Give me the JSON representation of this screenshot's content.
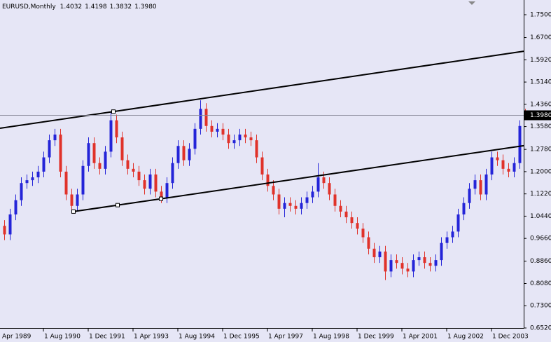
{
  "chart_data": {
    "type": "candlestick",
    "header": {
      "symbol": "EURUSD,Monthly",
      "open": "1.4032",
      "high": "1.4198",
      "low": "1.3832",
      "close": "1.3980"
    },
    "x": [
      1,
      3,
      5,
      7,
      9,
      11,
      13,
      15,
      17,
      19,
      21,
      23,
      25,
      27,
      29,
      31,
      33,
      35,
      37,
      39,
      41,
      43,
      45,
      47,
      49,
      51,
      53,
      55,
      57,
      59,
      61,
      63,
      65,
      67,
      69,
      71,
      73,
      75,
      77,
      79,
      81,
      83,
      85,
      87,
      89,
      91,
      93,
      95,
      97,
      99,
      101,
      103,
      105,
      107,
      109,
      111,
      113,
      115,
      117,
      119,
      121,
      123,
      125,
      127,
      129,
      131,
      133,
      135,
      137,
      139,
      141,
      143,
      145,
      147,
      149,
      151,
      153,
      155,
      157,
      159,
      161,
      163,
      165,
      167,
      169,
      171,
      173,
      175,
      177,
      179,
      181,
      183,
      185,
      187
    ],
    "open": [
      1.01,
      0.98,
      1.05,
      1.1,
      1.16,
      1.17,
      1.18,
      1.2,
      1.25,
      1.31,
      1.33,
      1.2,
      1.12,
      1.08,
      1.12,
      1.22,
      1.3,
      1.23,
      1.21,
      1.27,
      1.38,
      1.32,
      1.24,
      1.21,
      1.2,
      1.17,
      1.14,
      1.19,
      1.13,
      1.11,
      1.16,
      1.23,
      1.29,
      1.24,
      1.28,
      1.35,
      1.42,
      1.36,
      1.34,
      1.35,
      1.33,
      1.3,
      1.31,
      1.33,
      1.32,
      1.31,
      1.25,
      1.19,
      1.15,
      1.12,
      1.07,
      1.09,
      1.08,
      1.07,
      1.09,
      1.11,
      1.13,
      1.18,
      1.16,
      1.12,
      1.08,
      1.06,
      1.04,
      1.02,
      1.0,
      0.97,
      0.93,
      0.9,
      0.92,
      0.85,
      0.89,
      0.88,
      0.86,
      0.85,
      0.89,
      0.9,
      0.88,
      0.87,
      0.89,
      0.95,
      0.97,
      0.99,
      1.05,
      1.09,
      1.14,
      1.17,
      1.12,
      1.19,
      1.25,
      1.24,
      1.21,
      1.2,
      1.23,
      1.4032
    ],
    "high": [
      1.03,
      1.07,
      1.12,
      1.18,
      1.19,
      1.2,
      1.22,
      1.27,
      1.33,
      1.35,
      1.35,
      1.22,
      1.14,
      1.14,
      1.24,
      1.32,
      1.32,
      1.25,
      1.29,
      1.41,
      1.4,
      1.34,
      1.26,
      1.23,
      1.22,
      1.19,
      1.21,
      1.21,
      1.15,
      1.18,
      1.25,
      1.31,
      1.31,
      1.3,
      1.37,
      1.45,
      1.44,
      1.38,
      1.37,
      1.37,
      1.35,
      1.33,
      1.35,
      1.35,
      1.34,
      1.33,
      1.27,
      1.21,
      1.17,
      1.14,
      1.11,
      1.11,
      1.1,
      1.11,
      1.13,
      1.15,
      1.23,
      1.2,
      1.18,
      1.14,
      1.1,
      1.08,
      1.06,
      1.04,
      1.02,
      0.99,
      0.95,
      0.94,
      0.94,
      0.91,
      0.91,
      0.9,
      0.88,
      0.91,
      0.92,
      0.92,
      0.9,
      0.91,
      0.97,
      0.99,
      1.01,
      1.07,
      1.11,
      1.16,
      1.19,
      1.19,
      1.21,
      1.27,
      1.27,
      1.26,
      1.23,
      1.25,
      1.38,
      1.4198
    ],
    "low": [
      0.96,
      0.96,
      1.03,
      1.08,
      1.14,
      1.15,
      1.16,
      1.18,
      1.23,
      1.29,
      1.18,
      1.1,
      1.06,
      1.06,
      1.1,
      1.2,
      1.21,
      1.19,
      1.19,
      1.25,
      1.3,
      1.22,
      1.19,
      1.18,
      1.15,
      1.12,
      1.12,
      1.11,
      1.09,
      1.09,
      1.14,
      1.21,
      1.22,
      1.22,
      1.26,
      1.33,
      1.34,
      1.32,
      1.32,
      1.31,
      1.28,
      1.28,
      1.29,
      1.3,
      1.29,
      1.23,
      1.17,
      1.13,
      1.1,
      1.05,
      1.04,
      1.06,
      1.05,
      1.05,
      1.07,
      1.09,
      1.11,
      1.14,
      1.1,
      1.06,
      1.04,
      1.02,
      1.0,
      0.98,
      0.95,
      0.91,
      0.88,
      0.88,
      0.82,
      0.83,
      0.86,
      0.84,
      0.83,
      0.83,
      0.87,
      0.86,
      0.85,
      0.85,
      0.87,
      0.93,
      0.95,
      0.97,
      1.03,
      1.07,
      1.12,
      1.1,
      1.1,
      1.17,
      1.22,
      1.19,
      1.18,
      1.18,
      1.21,
      1.3832
    ],
    "close": [
      0.98,
      1.05,
      1.1,
      1.16,
      1.17,
      1.18,
      1.2,
      1.25,
      1.31,
      1.33,
      1.2,
      1.12,
      1.08,
      1.12,
      1.22,
      1.3,
      1.23,
      1.21,
      1.27,
      1.38,
      1.32,
      1.24,
      1.21,
      1.2,
      1.17,
      1.14,
      1.19,
      1.13,
      1.11,
      1.16,
      1.23,
      1.29,
      1.24,
      1.28,
      1.35,
      1.42,
      1.36,
      1.34,
      1.35,
      1.33,
      1.3,
      1.31,
      1.33,
      1.32,
      1.31,
      1.25,
      1.19,
      1.15,
      1.12,
      1.07,
      1.09,
      1.08,
      1.07,
      1.09,
      1.11,
      1.13,
      1.18,
      1.16,
      1.12,
      1.08,
      1.06,
      1.04,
      1.02,
      1.0,
      0.97,
      0.93,
      0.9,
      0.92,
      0.85,
      0.89,
      0.88,
      0.86,
      0.85,
      0.89,
      0.9,
      0.88,
      0.87,
      0.89,
      0.95,
      0.97,
      0.99,
      1.05,
      1.09,
      1.14,
      1.17,
      1.12,
      1.19,
      1.25,
      1.24,
      1.21,
      1.2,
      1.23,
      1.36,
      1.398
    ],
    "up_color": "#2424d8",
    "down_color": "#e0322a",
    "trendlines": [
      {
        "x": [
          -0.5,
          186.5
        ],
        "y": [
          1.352,
          1.622
        ],
        "anchors_x": [
          40
        ],
        "anchors_y": [
          1.4105
        ]
      },
      {
        "x": [
          25.75,
          186.5
        ],
        "y": [
          1.06,
          1.291
        ],
        "anchors_x": [
          25.75,
          41.5,
          57
        ],
        "anchors_y": [
          1.06,
          1.0826,
          1.105
        ]
      }
    ],
    "xlim": [
      -0.5,
      186.5
    ],
    "ylim": [
      0.652,
      1.8016
    ],
    "xticks": [
      {
        "value": -1,
        "label": "Apr 1989"
      },
      {
        "value": 15,
        "label": "1 Aug 1990"
      },
      {
        "value": 31,
        "label": "1 Dec 1991"
      },
      {
        "value": 47,
        "label": "1 Apr 1993"
      },
      {
        "value": 63,
        "label": "1 Aug 1994"
      },
      {
        "value": 79,
        "label": "1 Dec 1995"
      },
      {
        "value": 95,
        "label": "1 Apr 1997"
      },
      {
        "value": 111,
        "label": "1 Aug 1998"
      },
      {
        "value": 127,
        "label": "1 Dec 1999"
      },
      {
        "value": 143,
        "label": "1 Apr 2001"
      },
      {
        "value": 159,
        "label": "1 Aug 2002"
      },
      {
        "value": 175,
        "label": "1 Dec 2003"
      }
    ],
    "yticks": [
      {
        "value": 1.75,
        "label": "1.7500"
      },
      {
        "value": 1.67,
        "label": "1.6700"
      },
      {
        "value": 1.592,
        "label": "1.5920"
      },
      {
        "value": 1.514,
        "label": "1.5140"
      },
      {
        "value": 1.436,
        "label": "1.4360"
      },
      {
        "value": 1.358,
        "label": "1.3580"
      },
      {
        "value": 1.278,
        "label": "1.2780"
      },
      {
        "value": 1.2,
        "label": "1.2000"
      },
      {
        "value": 1.122,
        "label": "1.1220"
      },
      {
        "value": 1.044,
        "label": "1.0440"
      },
      {
        "value": 0.966,
        "label": "0.9660"
      },
      {
        "value": 0.886,
        "label": "0.8860"
      },
      {
        "value": 0.808,
        "label": "0.8080"
      },
      {
        "value": 0.73,
        "label": "0.7300"
      },
      {
        "value": 0.652,
        "label": "0.6520"
      }
    ]
  }
}
